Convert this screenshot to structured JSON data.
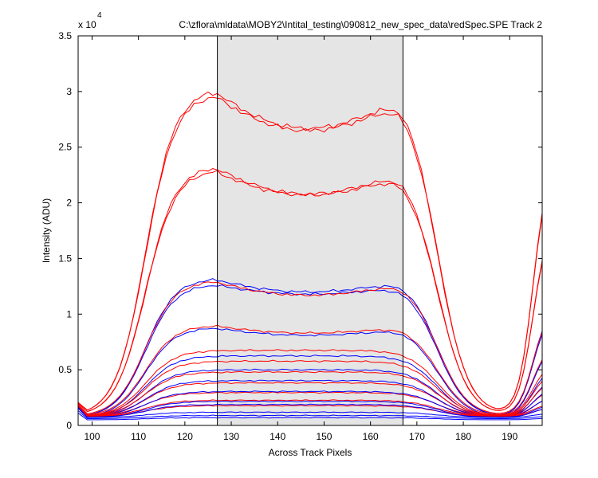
{
  "chart_data": {
    "type": "line",
    "title": "C:\\zflora\\mldata\\MOBY2\\Intital_testing\\090812_new_spec_data\\redSpec.SPE   Track 2",
    "xlabel": "Across Track Pixels",
    "ylabel": "Intensity (ADU)",
    "y_multiplier_label": "x 10",
    "y_multiplier_exponent": "4",
    "xlim": [
      97,
      197
    ],
    "ylim": [
      0,
      35000
    ],
    "xticks": [
      100,
      110,
      120,
      130,
      140,
      150,
      160,
      170,
      180,
      190
    ],
    "yticks": [
      0,
      5000,
      10000,
      15000,
      20000,
      25000,
      30000,
      35000
    ],
    "ytick_labels": [
      "0",
      "0.5",
      "1",
      "1.5",
      "2",
      "2.5",
      "3",
      "3.5"
    ],
    "grid": false,
    "shaded_region": {
      "x": [
        127,
        167
      ],
      "color": "#e5e5e5"
    },
    "colors": {
      "red": "#ff0000",
      "blue": "#0000ff",
      "shade": "#e5e5e5"
    },
    "series": [
      {
        "color": "red",
        "baseline": 800,
        "plateau": 29800,
        "shape": "saddle",
        "dip": 3300,
        "phase": 0
      },
      {
        "color": "red",
        "baseline": 800,
        "plateau": 30200,
        "shape": "saddle",
        "dip": 3500,
        "phase": 1
      },
      {
        "color": "red",
        "baseline": 800,
        "plateau": 23000,
        "shape": "saddle",
        "dip": 2300,
        "phase": 2
      },
      {
        "color": "red",
        "baseline": 800,
        "plateau": 23300,
        "shape": "saddle",
        "dip": 2500,
        "phase": 3
      },
      {
        "color": "blue",
        "baseline": 700,
        "plateau": 13200,
        "shape": "saddle",
        "dip": 1200,
        "phase": 4
      },
      {
        "color": "blue",
        "baseline": 700,
        "plateau": 12700,
        "shape": "saddle",
        "dip": 900,
        "phase": 5
      },
      {
        "color": "red",
        "baseline": 800,
        "plateau": 13000,
        "shape": "saddle",
        "dip": 1300,
        "phase": 6
      },
      {
        "color": "red",
        "baseline": 800,
        "plateau": 9000,
        "shape": "saddle",
        "dip": 700,
        "phase": 7
      },
      {
        "color": "blue",
        "baseline": 700,
        "plateau": 8800,
        "shape": "saddle",
        "dip": 700,
        "phase": 8
      },
      {
        "color": "red",
        "baseline": 800,
        "plateau": 6900,
        "shape": "flat",
        "dip": 300,
        "phase": 9
      },
      {
        "color": "blue",
        "baseline": 700,
        "plateau": 6400,
        "shape": "flat",
        "dip": 300,
        "phase": 10
      },
      {
        "color": "red",
        "baseline": 800,
        "plateau": 5900,
        "shape": "flat",
        "dip": 250,
        "phase": 11
      },
      {
        "color": "blue",
        "baseline": 700,
        "plateau": 5100,
        "shape": "flat",
        "dip": 200,
        "phase": 12
      },
      {
        "color": "red",
        "baseline": 800,
        "plateau": 4900,
        "shape": "flat",
        "dip": 200,
        "phase": 13
      },
      {
        "color": "red",
        "baseline": 800,
        "plateau": 3900,
        "shape": "flat",
        "dip": 150,
        "phase": 14
      },
      {
        "color": "blue",
        "baseline": 700,
        "plateau": 4100,
        "shape": "flat",
        "dip": 150,
        "phase": 15
      },
      {
        "color": "red",
        "baseline": 800,
        "plateau": 3000,
        "shape": "flat",
        "dip": 100,
        "phase": 16
      },
      {
        "color": "blue",
        "baseline": 700,
        "plateau": 3100,
        "shape": "flat",
        "dip": 100,
        "phase": 17
      },
      {
        "color": "red",
        "baseline": 800,
        "plateau": 2300,
        "shape": "flat",
        "dip": 80,
        "phase": 18
      },
      {
        "color": "blue",
        "baseline": 700,
        "plateau": 2200,
        "shape": "flat",
        "dip": 80,
        "phase": 19
      },
      {
        "color": "red",
        "baseline": 800,
        "plateau": 1800,
        "shape": "flat",
        "dip": 50,
        "phase": 20
      },
      {
        "color": "blue",
        "baseline": 700,
        "plateau": 1900,
        "shape": "flat",
        "dip": 50,
        "phase": 21
      },
      {
        "color": "blue",
        "baseline": 700,
        "plateau": 1200,
        "shape": "flat",
        "dip": 30,
        "phase": 22
      },
      {
        "color": "blue",
        "baseline": 600,
        "plateau": 900,
        "shape": "flat",
        "dip": 20,
        "phase": 23
      },
      {
        "color": "blue",
        "baseline": 500,
        "plateau": 700,
        "shape": "flat",
        "dip": 10,
        "phase": 24
      }
    ],
    "x_range": {
      "start": 97,
      "end": 197,
      "step": 1
    },
    "left_edge": 111.5,
    "right_edge": 174.5,
    "rise_width": 3.2,
    "right_rise_center": 195,
    "right_rise_width": 1.6
  }
}
